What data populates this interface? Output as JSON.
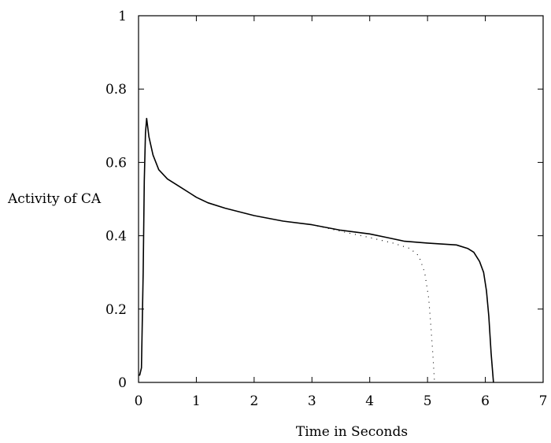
{
  "chart_data": {
    "type": "line",
    "title": "",
    "xlabel": "Time in Seconds",
    "ylabel": "Activity of CA",
    "xlim": [
      0,
      7
    ],
    "ylim": [
      0,
      1
    ],
    "xticks": [
      "0",
      "1",
      "2",
      "3",
      "4",
      "5",
      "6",
      "7"
    ],
    "yticks": [
      "0",
      "0.2",
      "0.4",
      "0.6",
      "0.8",
      "1"
    ],
    "grid": false,
    "legend": "none",
    "series": [
      {
        "style": "solid",
        "x": [
          0.0,
          0.02,
          0.05,
          0.08,
          0.1,
          0.12,
          0.14,
          0.18,
          0.25,
          0.35,
          0.5,
          0.7,
          0.9,
          1.0,
          1.2,
          1.5,
          2.0,
          2.5,
          3.0,
          3.5,
          4.0,
          4.3,
          4.6,
          5.0,
          5.5,
          5.7,
          5.8,
          5.9,
          5.97,
          6.02,
          6.06,
          6.1,
          6.14
        ],
        "y": [
          0.02,
          0.02,
          0.04,
          0.3,
          0.55,
          0.68,
          0.72,
          0.67,
          0.62,
          0.58,
          0.555,
          0.535,
          0.515,
          0.505,
          0.49,
          0.475,
          0.455,
          0.44,
          0.43,
          0.415,
          0.405,
          0.395,
          0.385,
          0.38,
          0.375,
          0.365,
          0.355,
          0.33,
          0.3,
          0.25,
          0.18,
          0.08,
          0.0
        ]
      },
      {
        "style": "dotted",
        "x": [
          3.0,
          3.5,
          4.0,
          4.4,
          4.7,
          4.85,
          4.95,
          5.02,
          5.06,
          5.09,
          5.11,
          5.12
        ],
        "y": [
          0.43,
          0.412,
          0.395,
          0.38,
          0.365,
          0.345,
          0.3,
          0.23,
          0.15,
          0.08,
          0.03,
          0.0
        ]
      }
    ]
  }
}
